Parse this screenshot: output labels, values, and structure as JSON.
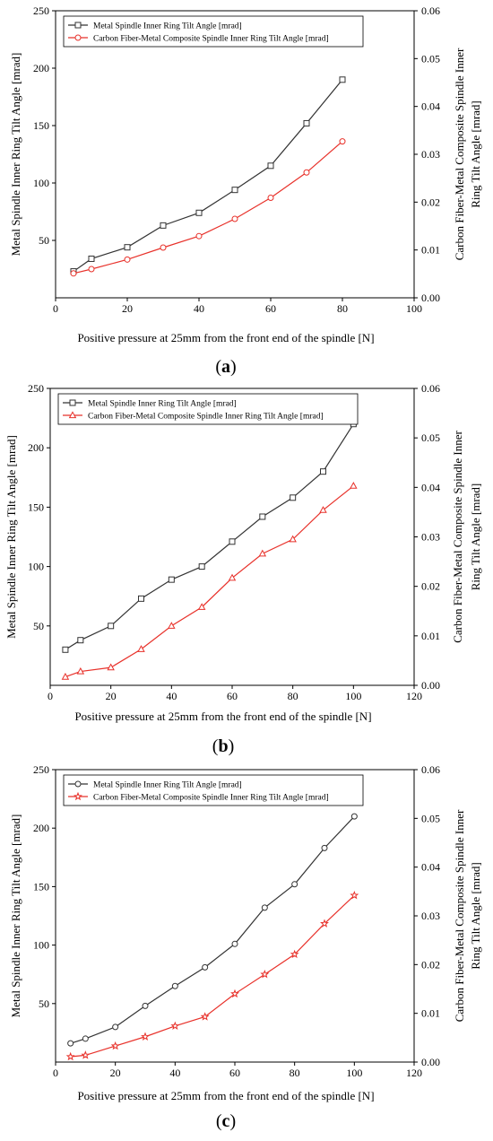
{
  "chart_data": [
    {
      "type": "line",
      "caption": "(a)",
      "xlabel": "Positive pressure at 25mm from the front end of the spindle [N]",
      "ylabel": "Metal Spindle Inner Ring Tilt Angle [mrad]",
      "y2label_line1": "Carbon Fiber-Metal Composite Spindle Inner",
      "y2label_line2": "Ring Tilt Angle [mrad]",
      "xlim": [
        0,
        100
      ],
      "ylim": [
        0,
        250
      ],
      "y2lim": [
        0,
        0.06
      ],
      "x_ticks": [
        "0",
        "20",
        "40",
        "60",
        "80",
        "100"
      ],
      "y_ticks": [
        "50",
        "100",
        "150",
        "200",
        "250"
      ],
      "y2_ticks": [
        "0.00",
        "0.01",
        "0.02",
        "0.03",
        "0.04",
        "0.05",
        "0.06"
      ],
      "legend_position": "top-left",
      "series": [
        {
          "name": "Metal Spindle Inner Ring Tilt Angle [mrad]",
          "color": "#333333",
          "marker": "square",
          "axis": "left",
          "x": [
            5,
            10,
            20,
            30,
            40,
            50,
            60,
            70,
            80
          ],
          "values": [
            23,
            34,
            44,
            63,
            74,
            94,
            115,
            152,
            190
          ]
        },
        {
          "name": "Carbon Fiber-Metal Composite Spindle Inner Ring Tilt Angle [mrad]",
          "color": "#e8312a",
          "marker": "circle",
          "axis": "right",
          "x": [
            5,
            10,
            20,
            30,
            40,
            50,
            60,
            70,
            80
          ],
          "values": [
            0.0051,
            0.006,
            0.008,
            0.0105,
            0.0129,
            0.0165,
            0.0209,
            0.0262,
            0.0327
          ]
        }
      ]
    },
    {
      "type": "line",
      "caption": "(b)",
      "xlabel": "Positive pressure at 25mm from the front end of the spindle [N]",
      "ylabel": "Metal Spindle Inner Ring Tilt Angle [mrad]",
      "y2label_line1": "Carbon Fiber-Metal Composite Spindle Inner",
      "y2label_line2": "Ring Tilt Angle [mrad]",
      "xlim": [
        0,
        120
      ],
      "ylim": [
        0,
        250
      ],
      "y2lim": [
        0,
        0.06
      ],
      "x_ticks": [
        "0",
        "20",
        "40",
        "60",
        "80",
        "100",
        "120"
      ],
      "y_ticks": [
        "50",
        "100",
        "150",
        "200",
        "250"
      ],
      "y2_ticks": [
        "0.00",
        "0.01",
        "0.02",
        "0.03",
        "0.04",
        "0.05",
        "0.06"
      ],
      "legend_position": "top-left",
      "series": [
        {
          "name": "Metal Spindle Inner Ring Tilt Angle [mrad]",
          "color": "#333333",
          "marker": "square",
          "axis": "left",
          "x": [
            5,
            10,
            20,
            30,
            40,
            50,
            60,
            70,
            80,
            90,
            100
          ],
          "values": [
            30,
            38,
            50,
            73,
            89,
            100,
            121,
            142,
            158,
            180,
            220
          ]
        },
        {
          "name": "Carbon Fiber-Metal Composite Spindle Inner Ring Tilt Angle [mrad]",
          "color": "#e8312a",
          "marker": "triangle",
          "axis": "right",
          "x": [
            5,
            10,
            20,
            30,
            40,
            50,
            60,
            70,
            80,
            90,
            100
          ],
          "values": [
            0.0017,
            0.0028,
            0.0036,
            0.0073,
            0.012,
            0.0158,
            0.0217,
            0.0266,
            0.0295,
            0.0354,
            0.0403
          ]
        }
      ]
    },
    {
      "type": "line",
      "caption": "(c)",
      "xlabel": "Positive pressure at 25mm from the front end of the spindle [N]",
      "ylabel": "Metal Spindle Inner Ring Tilt Angle [mrad]",
      "y2label_line1": "Carbon Fiber-Metal Composite Spindle Inner",
      "y2label_line2": "Ring Tilt Angle [mrad]",
      "xlim": [
        0,
        120
      ],
      "ylim": [
        0,
        250
      ],
      "y2lim": [
        0,
        0.06
      ],
      "x_ticks": [
        "0",
        "20",
        "40",
        "60",
        "80",
        "100",
        "120"
      ],
      "y_ticks": [
        "50",
        "100",
        "150",
        "200",
        "250"
      ],
      "y2_ticks": [
        "0.00",
        "0.01",
        "0.02",
        "0.03",
        "0.04",
        "0.05",
        "0.06"
      ],
      "legend_position": "top-left",
      "series": [
        {
          "name": "Metal Spindle Inner Ring Tilt Angle [mrad]",
          "color": "#333333",
          "marker": "circle",
          "axis": "left",
          "x": [
            5,
            10,
            20,
            30,
            40,
            50,
            60,
            70,
            80,
            90,
            100
          ],
          "values": [
            16,
            20,
            30,
            48,
            65,
            81,
            101,
            132,
            152,
            183,
            210
          ]
        },
        {
          "name": "Carbon Fiber-Metal Composite Spindle Inner Ring Tilt Angle [mrad]",
          "color": "#e8312a",
          "marker": "star",
          "axis": "right",
          "x": [
            5,
            10,
            20,
            30,
            40,
            50,
            60,
            70,
            80,
            90,
            100
          ],
          "values": [
            0.0011,
            0.0014,
            0.0033,
            0.0052,
            0.0074,
            0.0093,
            0.014,
            0.018,
            0.0221,
            0.0284,
            0.0342
          ]
        }
      ]
    }
  ]
}
